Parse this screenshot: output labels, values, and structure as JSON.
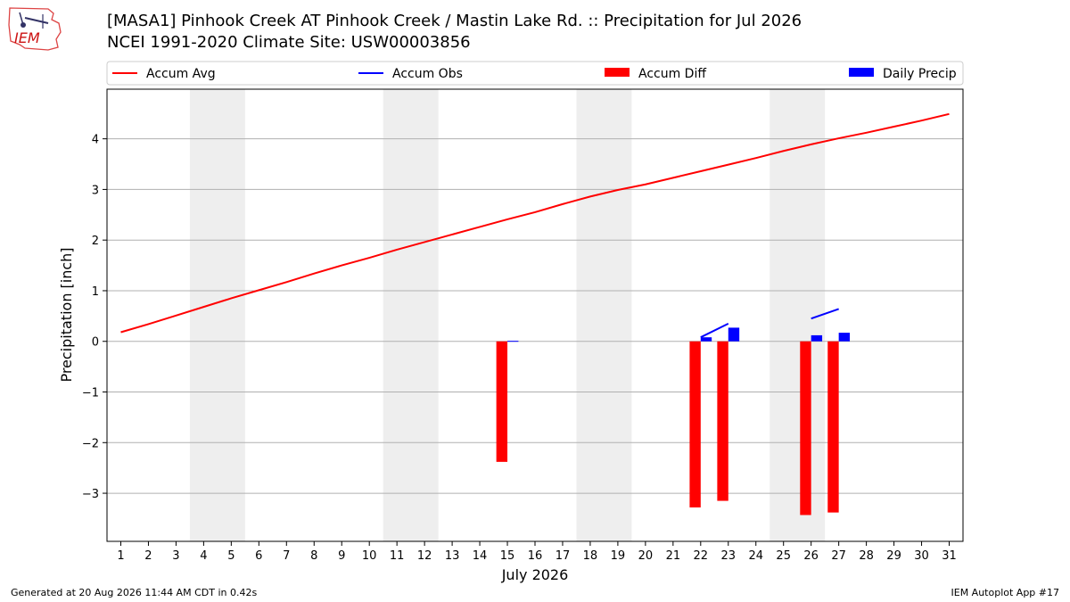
{
  "header": {
    "logo_text": "IEM",
    "title_line1": "[MASA1] Pinhook Creek  AT Pinhook Creek / Mastin Lake Rd. :: Precipitation for Jul 2026",
    "title_line2": "NCEI 1991-2020 Climate Site: USW00003856"
  },
  "footer": {
    "left": "Generated at 20 Aug 2026 11:44 AM CDT in 0.42s",
    "right": "IEM Autoplot App #17"
  },
  "chart_data": {
    "type": "bar",
    "xlabel": "July 2026",
    "ylabel": "Precipitation [inch]",
    "xlim": [
      0.5,
      31.5
    ],
    "ylim": [
      -3.95,
      4.98
    ],
    "x_ticks": [
      1,
      2,
      3,
      4,
      5,
      6,
      7,
      8,
      9,
      10,
      11,
      12,
      13,
      14,
      15,
      16,
      17,
      18,
      19,
      20,
      21,
      22,
      23,
      24,
      25,
      26,
      27,
      28,
      29,
      30,
      31
    ],
    "y_ticks": [
      -3,
      -2,
      -1,
      0,
      1,
      2,
      3,
      4
    ],
    "y_grid": true,
    "legend_position": "top",
    "weekend_shading": [
      [
        3.5,
        5.5
      ],
      [
        10.5,
        12.5
      ],
      [
        17.5,
        19.5
      ],
      [
        24.5,
        26.5
      ]
    ],
    "colors": {
      "accum_avg": "#ff0000",
      "accum_obs": "#0000ff",
      "accum_diff": "#ff0000",
      "daily_precip": "#0000ff",
      "shade": "#eeeeee",
      "grid": "#b0b0b0"
    },
    "series": [
      {
        "name": "Accum Avg",
        "kind": "line",
        "x": [
          1,
          2,
          3,
          4,
          5,
          6,
          7,
          8,
          9,
          10,
          11,
          12,
          13,
          14,
          15,
          16,
          17,
          18,
          19,
          20,
          21,
          22,
          23,
          24,
          25,
          26,
          27,
          28,
          29,
          30,
          31
        ],
        "values": [
          0.18,
          0.34,
          0.51,
          0.68,
          0.85,
          1.01,
          1.17,
          1.34,
          1.5,
          1.65,
          1.81,
          1.96,
          2.11,
          2.26,
          2.41,
          2.55,
          2.71,
          2.86,
          2.99,
          3.1,
          3.23,
          3.36,
          3.49,
          3.62,
          3.76,
          3.89,
          4.01,
          4.12,
          4.24,
          4.36,
          4.49
        ]
      },
      {
        "name": "Accum Obs",
        "kind": "line-segments",
        "segments": [
          [
            [
              22,
              0.08
            ],
            [
              23,
              0.35
            ]
          ],
          [
            [
              26,
              0.45
            ],
            [
              27,
              0.64
            ]
          ]
        ]
      },
      {
        "name": "Accum Diff",
        "kind": "bar",
        "x": [
          15,
          22,
          23,
          26,
          27
        ],
        "values": [
          -2.38,
          -3.28,
          -3.15,
          -3.43,
          -3.38
        ]
      },
      {
        "name": "Daily Precip",
        "kind": "bar",
        "x": [
          15,
          22,
          23,
          26,
          27
        ],
        "values": [
          0.01,
          0.08,
          0.27,
          0.12,
          0.17
        ]
      }
    ]
  }
}
